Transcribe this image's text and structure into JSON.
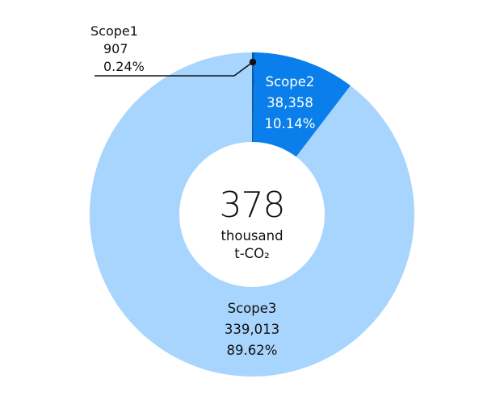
{
  "chart_data": {
    "type": "pie",
    "variant": "donut",
    "title": "",
    "center_label": {
      "value": "378",
      "unit_line1": "thousand",
      "unit_line2": "t-CO₂"
    },
    "categories": [
      "Scope1",
      "Scope2",
      "Scope3"
    ],
    "values": [
      907,
      38358,
      339013
    ],
    "value_labels": [
      "907",
      "38,358",
      "339,013"
    ],
    "percentages": [
      0.24,
      10.14,
      89.62
    ],
    "percentage_labels": [
      "0.24%",
      "10.14%",
      "89.62%"
    ],
    "colors": [
      "#0b5aa6",
      "#0a7eea",
      "#a8d5fd"
    ],
    "unit": "t-CO₂",
    "start_angle_deg": 0,
    "direction": "clockwise",
    "legend": "none (inline labels)"
  },
  "labels": {
    "scope1": {
      "name": "Scope1",
      "value": "907",
      "pct": "0.24%"
    },
    "scope2": {
      "name": "Scope2",
      "value": "38,358",
      "pct": "10.14%"
    },
    "scope3": {
      "name": "Scope3",
      "value": "339,013",
      "pct": "89.62%"
    }
  },
  "center": {
    "total": "378",
    "unit1": "thousand",
    "unit2": "t-CO₂"
  }
}
